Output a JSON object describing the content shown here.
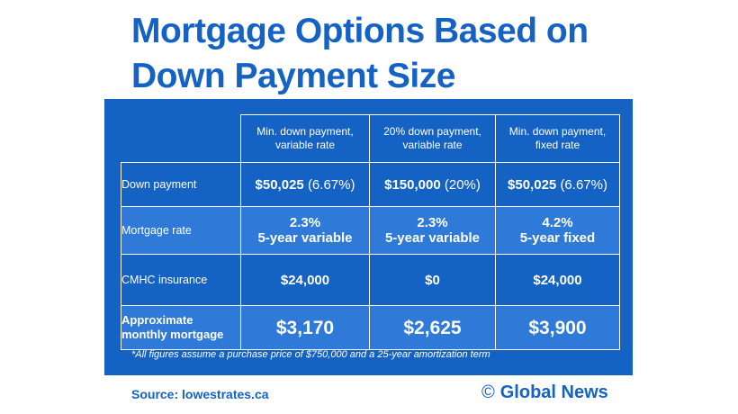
{
  "title": "Mortgage Options Based on Down Payment Size",
  "source": "Source: lowestrates.ca",
  "brand": {
    "symbol": "©",
    "name": "Global News"
  },
  "colors": {
    "primary": "#1462c4",
    "alt_row": "#2f7ad8",
    "text_on_panel": "#ffffff"
  },
  "chart_data": {
    "type": "table",
    "title": "Mortgage Options Based on Down Payment Size",
    "columns": [
      [
        "Min. down payment,",
        "variable rate"
      ],
      [
        "20% down payment,",
        "variable rate"
      ],
      [
        "Min. down payment,",
        "fixed rate"
      ]
    ],
    "rows": [
      {
        "label": "Down payment",
        "cells": [
          {
            "amount": "$50,025",
            "detail": "(6.67%)"
          },
          {
            "amount": "$150,000",
            "detail": "(20%)"
          },
          {
            "amount": "$50,025",
            "detail": "(6.67%)"
          }
        ]
      },
      {
        "label": "Mortgage rate",
        "cells": [
          {
            "rate": "2.3%",
            "term": "5-year variable"
          },
          {
            "rate": "2.3%",
            "term": "5-year variable"
          },
          {
            "rate": "4.2%",
            "term": "5-year fixed"
          }
        ]
      },
      {
        "label": "CMHC insurance",
        "cells": [
          "$24,000",
          "$0",
          "$24,000"
        ]
      },
      {
        "label": [
          "Approximate",
          "monthly mortgage"
        ],
        "cells": [
          "$3,170",
          "$2,625",
          "$3,900"
        ]
      }
    ],
    "footnote": "*All figures assume a purchase price of $750,000 and a 25-year amortization term"
  }
}
